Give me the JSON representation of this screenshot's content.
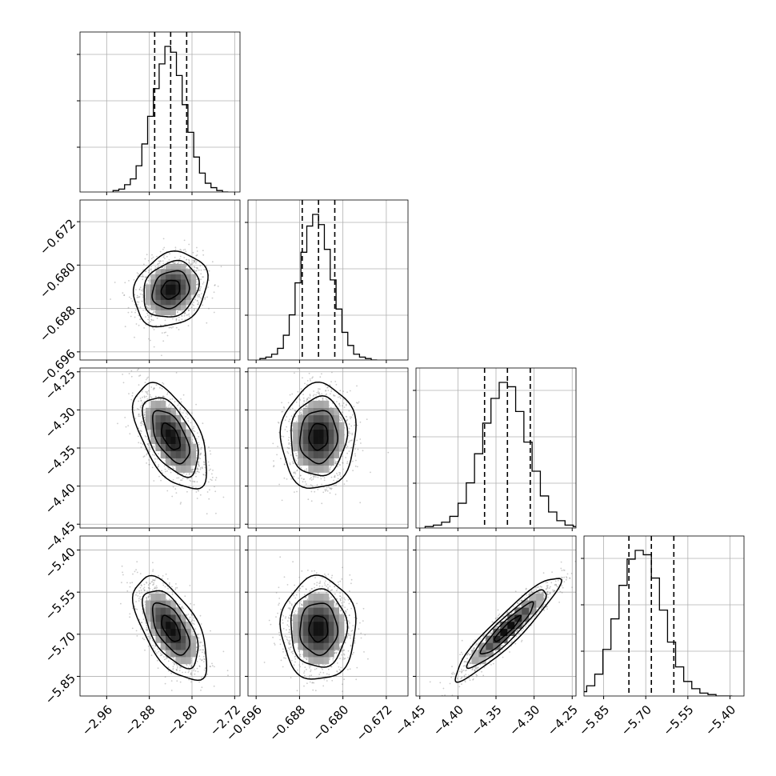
{
  "chart_data": {
    "type": "corner",
    "grid": true,
    "parameters": [
      {
        "index": 0,
        "median": -2.84,
        "q16": -2.87,
        "q84": -2.81,
        "sigma": 0.03,
        "ticks": [
          -2.96,
          -2.88,
          -2.8,
          -2.72
        ],
        "tick_labels": [
          "−2.96",
          "−2.88",
          "−2.80",
          "−2.72"
        ],
        "range": [
          -3.01,
          -2.71
        ]
      },
      {
        "index": 1,
        "median": -0.6845,
        "q16": -0.6875,
        "q84": -0.6815,
        "sigma": 0.003,
        "ticks": [
          -0.696,
          -0.688,
          -0.68,
          -0.672
        ],
        "tick_labels": [
          "−0.696",
          "−0.688",
          "−0.680",
          "−0.672"
        ],
        "range": [
          -0.6975,
          -0.668
        ]
      },
      {
        "index": 2,
        "median": -4.335,
        "q16": -4.365,
        "q84": -4.305,
        "sigma": 0.03,
        "ticks": [
          -4.45,
          -4.4,
          -4.35,
          -4.3,
          -4.25
        ],
        "tick_labels": [
          "−4.45",
          "−4.40",
          "−4.35",
          "−4.30",
          "−4.25"
        ],
        "range": [
          -4.455,
          -4.245
        ]
      },
      {
        "index": 3,
        "median": -5.68,
        "q16": -5.76,
        "q84": -5.6,
        "sigma": 0.08,
        "ticks": [
          -5.85,
          -5.7,
          -5.55,
          -5.4
        ],
        "tick_labels": [
          "−5.85",
          "−5.70",
          "−5.55",
          "−5.40"
        ],
        "range": [
          -5.92,
          -5.35
        ]
      }
    ],
    "histograms": [
      {
        "param": 0,
        "bins": 20,
        "counts": [
          1,
          2,
          5,
          9,
          18,
          33,
          52,
          71,
          88,
          100,
          96,
          80,
          60,
          41,
          24,
          13,
          6,
          3,
          1,
          0
        ]
      },
      {
        "param": 1,
        "bins": 20,
        "counts": [
          1,
          2,
          4,
          8,
          17,
          31,
          53,
          74,
          92,
          100,
          93,
          76,
          55,
          35,
          19,
          10,
          4,
          2,
          1,
          0
        ]
      },
      {
        "param": 2,
        "bins": 20,
        "counts": [
          1,
          2,
          4,
          8,
          17,
          31,
          51,
          72,
          89,
          100,
          97,
          80,
          59,
          39,
          22,
          11,
          5,
          2,
          1,
          0
        ]
      },
      {
        "param": 3,
        "bins": 20,
        "counts": [
          1,
          3,
          7,
          15,
          32,
          53,
          76,
          94,
          100,
          97,
          81,
          59,
          37,
          20,
          10,
          5,
          2,
          1,
          0,
          0
        ]
      }
    ],
    "pairs": [
      {
        "x": 0,
        "y": 1,
        "correlation": 0.2
      },
      {
        "x": 0,
        "y": 2,
        "correlation": -0.55
      },
      {
        "x": 1,
        "y": 2,
        "correlation": 0.05
      },
      {
        "x": 0,
        "y": 3,
        "correlation": -0.6
      },
      {
        "x": 1,
        "y": 3,
        "correlation": 0.0
      },
      {
        "x": 2,
        "y": 3,
        "correlation": 0.93
      }
    ],
    "quantiles": [
      0.16,
      0.5,
      0.84
    ],
    "contour_levels_sigma": [
      0.5,
      1.0,
      1.5,
      2.0
    ],
    "colors": {
      "line": "#000000",
      "grid": "#b0b0b0",
      "scatter": "#8c8c8c",
      "density_max": "#000000",
      "density_min": "#ffffff"
    }
  }
}
